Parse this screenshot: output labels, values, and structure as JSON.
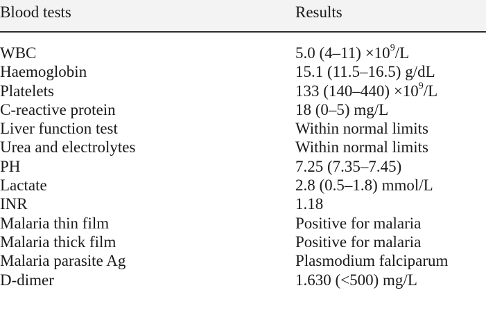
{
  "header": {
    "col1": "Blood tests",
    "col2": "Results"
  },
  "rows": [
    {
      "test": "WBC",
      "result_pre": "5.0 (4–11) ×10",
      "result_sup": "9",
      "result_post": "/L"
    },
    {
      "test": "Haemoglobin",
      "result_pre": "15.1 (11.5–16.5) g/dL",
      "result_sup": "",
      "result_post": ""
    },
    {
      "test": "Platelets",
      "result_pre": "133 (140–440) ×10",
      "result_sup": "9",
      "result_post": "/L"
    },
    {
      "test": "C-reactive protein",
      "result_pre": "18 (0–5) mg/L",
      "result_sup": "",
      "result_post": ""
    },
    {
      "test": "Liver function test",
      "result_pre": "Within normal limits",
      "result_sup": "",
      "result_post": ""
    },
    {
      "test": "Urea and electrolytes",
      "result_pre": "Within normal limits",
      "result_sup": "",
      "result_post": ""
    },
    {
      "test": "PH",
      "result_pre": "7.25 (7.35–7.45)",
      "result_sup": "",
      "result_post": ""
    },
    {
      "test": "Lactate",
      "result_pre": "2.8 (0.5–1.8) mmol/L",
      "result_sup": "",
      "result_post": ""
    },
    {
      "test": "INR",
      "result_pre": "1.18",
      "result_sup": "",
      "result_post": ""
    },
    {
      "test": "Malaria thin film",
      "result_pre": "Positive for malaria",
      "result_sup": "",
      "result_post": ""
    },
    {
      "test": "Malaria thick film",
      "result_pre": "Positive for malaria",
      "result_sup": "",
      "result_post": ""
    },
    {
      "test": "Malaria parasite Ag",
      "result_pre": "Plasmodium falciparum",
      "result_sup": "",
      "result_post": ""
    },
    {
      "test": "D-dimer",
      "result_pre": "1.630 (<500) mg/L",
      "result_sup": "",
      "result_post": ""
    }
  ]
}
